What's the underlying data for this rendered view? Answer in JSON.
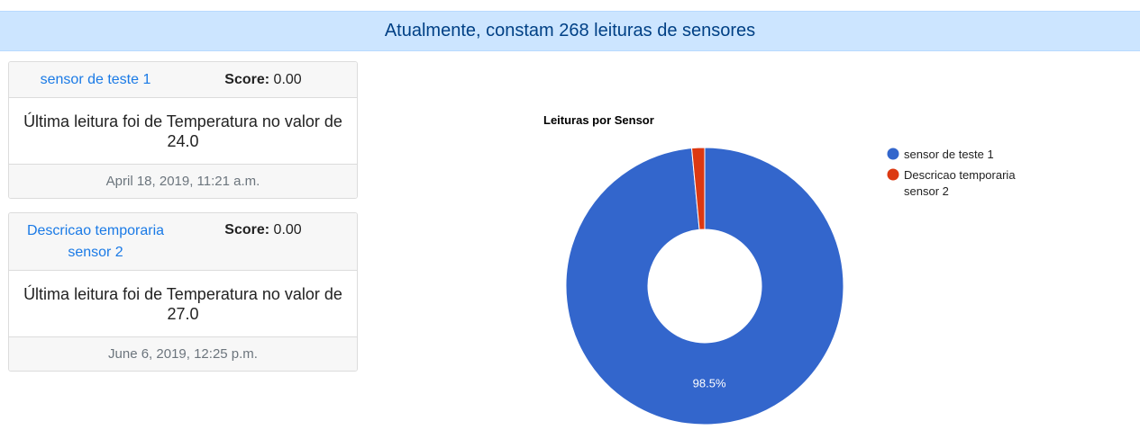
{
  "banner": {
    "text": "Atualmente, constam 268 leituras de sensores"
  },
  "sensors": [
    {
      "name": "sensor de teste 1",
      "score_label": "Score:",
      "score_value": "0.00",
      "reading": "Última leitura foi de Temperatura no valor de 24.0",
      "date": "April 18, 2019, 11:21 a.m."
    },
    {
      "name": "Descricao temporaria sensor 2",
      "score_label": "Score:",
      "score_value": "0.00",
      "reading": "Última leitura foi de Temperatura no valor de 27.0",
      "date": "June 6, 2019, 12:25 p.m."
    }
  ],
  "chart_data": {
    "type": "pie",
    "title": "Leituras por Sensor",
    "donut": true,
    "legend": "right",
    "slices": [
      {
        "label": "sensor de teste 1",
        "value": 98.5,
        "color": "#3366cc",
        "data_label": "98.5%"
      },
      {
        "label": "Descricao temporaria sensor 2",
        "value": 1.5,
        "color": "#dc3912",
        "data_label": ""
      }
    ]
  }
}
